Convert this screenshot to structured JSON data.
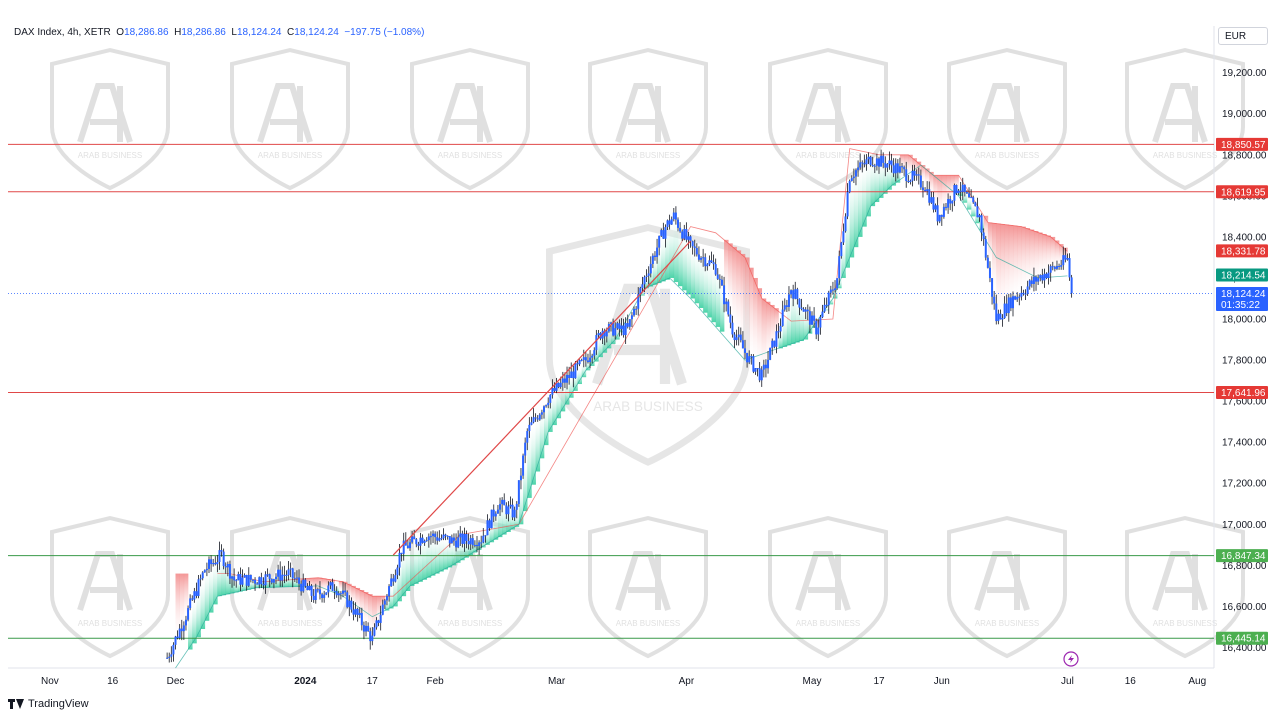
{
  "header": {
    "symbol": "DAX Index, 4h, XETR",
    "open_label": "O",
    "open": "18,286.86",
    "high_label": "H",
    "high": "18,286.86",
    "low_label": "L",
    "low": "18,124.24",
    "close_label": "C",
    "close": "18,124.24",
    "change": "−197.75 (−1.08%)"
  },
  "currency": "EUR",
  "footer": {
    "brand": "TradingView"
  },
  "watermark": {
    "text": "ARAB BUSINESS",
    "color": "#c8c8c8"
  },
  "colors": {
    "resistance": "#e04848",
    "support": "#3a9a4a",
    "up_fill": "#2ecc9a",
    "down_fill": "#f28b8b",
    "candle": "#2962ff",
    "trend": "#e04848",
    "current": "#2962ff",
    "baseline": "#26a69a",
    "cloud_line": "#ef5350"
  },
  "chart_data": {
    "type": "candlestick",
    "title": "DAX Index, 4h, XETR",
    "ylim": [
      16300,
      19330
    ],
    "y_ticks": [
      16400,
      16600,
      16800,
      17000,
      17200,
      17400,
      17600,
      17800,
      18000,
      18200,
      18400,
      18600,
      18800,
      19000,
      19200
    ],
    "y_tick_labels": [
      "16,400.00",
      "16,600.00",
      "16,800.00",
      "17,000.00",
      "17,200.00",
      "17,400.00",
      "17,600.00",
      "17,800.00",
      "18,000.00",
      "18,200.00",
      "18,400.00",
      "18,600.00",
      "18,800.00",
      "19,000.00",
      "19,200.00"
    ],
    "x_ticks": [
      {
        "label": "Nov",
        "date": "2023-11-01"
      },
      {
        "label": "16",
        "date": "2023-11-16"
      },
      {
        "label": "Dec",
        "date": "2023-12-01"
      },
      {
        "label": "2024",
        "date": "2024-01-01"
      },
      {
        "label": "17",
        "date": "2024-01-17"
      },
      {
        "label": "Feb",
        "date": "2024-02-01"
      },
      {
        "label": "Mar",
        "date": "2024-03-01"
      },
      {
        "label": "Apr",
        "date": "2024-04-01"
      },
      {
        "label": "May",
        "date": "2024-05-01"
      },
      {
        "label": "17",
        "date": "2024-05-17"
      },
      {
        "label": "Jun",
        "date": "2024-06-01"
      },
      {
        "label": "Jul",
        "date": "2024-07-01"
      },
      {
        "label": "16",
        "date": "2024-07-16"
      },
      {
        "label": "Aug",
        "date": "2024-08-01"
      }
    ],
    "horizontal_levels": [
      {
        "value": 18850.57,
        "label": "18,850.57",
        "kind": "resistance"
      },
      {
        "value": 18619.95,
        "label": "18,619.95",
        "kind": "resistance"
      },
      {
        "value": 17641.96,
        "label": "17,641.96",
        "kind": "resistance"
      },
      {
        "value": 16847.34,
        "label": "16,847.34",
        "kind": "support"
      },
      {
        "value": 16445.14,
        "label": "16,445.14",
        "kind": "support"
      }
    ],
    "markers": [
      {
        "value": 18331.78,
        "label": "18,331.78",
        "kind": "cloud"
      },
      {
        "value": 18214.54,
        "label": "18,214.54",
        "kind": "baseline"
      },
      {
        "value": 18124.24,
        "label": "18,124.24",
        "sublabel": "01:35:22",
        "kind": "current"
      }
    ],
    "trend_line": [
      {
        "date": "2024-01-22",
        "value": 16850
      },
      {
        "date": "2024-04-02",
        "value": 18380
      }
    ],
    "price_path": [
      [
        "2023-11-29",
        16350
      ],
      [
        "2023-12-04",
        16580
      ],
      [
        "2023-12-08",
        16780
      ],
      [
        "2023-12-12",
        16850
      ],
      [
        "2023-12-15",
        16730
      ],
      [
        "2023-12-20",
        16730
      ],
      [
        "2023-12-28",
        16760
      ],
      [
        "2024-01-03",
        16650
      ],
      [
        "2024-01-08",
        16700
      ],
      [
        "2024-01-12",
        16600
      ],
      [
        "2024-01-17",
        16440
      ],
      [
        "2024-01-19",
        16570
      ],
      [
        "2024-01-24",
        16880
      ],
      [
        "2024-01-30",
        16950
      ],
      [
        "2024-02-05",
        16920
      ],
      [
        "2024-02-12",
        16930
      ],
      [
        "2024-02-16",
        17100
      ],
      [
        "2024-02-20",
        17050
      ],
      [
        "2024-02-23",
        17450
      ],
      [
        "2024-02-28",
        17620
      ],
      [
        "2024-03-04",
        17720
      ],
      [
        "2024-03-08",
        17800
      ],
      [
        "2024-03-12",
        17950
      ],
      [
        "2024-03-18",
        17950
      ],
      [
        "2024-03-22",
        18200
      ],
      [
        "2024-03-27",
        18450
      ],
      [
        "2024-03-29",
        18500
      ],
      [
        "2024-04-02",
        18350
      ],
      [
        "2024-04-08",
        18250
      ],
      [
        "2024-04-12",
        17950
      ],
      [
        "2024-04-16",
        17800
      ],
      [
        "2024-04-19",
        17720
      ],
      [
        "2024-04-23",
        17950
      ],
      [
        "2024-04-26",
        18150
      ],
      [
        "2024-05-02",
        17950
      ],
      [
        "2024-05-07",
        18200
      ],
      [
        "2024-05-10",
        18700
      ],
      [
        "2024-05-15",
        18780
      ],
      [
        "2024-05-20",
        18750
      ],
      [
        "2024-05-24",
        18700
      ],
      [
        "2024-05-28",
        18650
      ],
      [
        "2024-05-31",
        18500
      ],
      [
        "2024-06-05",
        18650
      ],
      [
        "2024-06-10",
        18500
      ],
      [
        "2024-06-14",
        18000
      ],
      [
        "2024-06-18",
        18100
      ],
      [
        "2024-06-24",
        18200
      ],
      [
        "2024-06-28",
        18250
      ],
      [
        "2024-07-01",
        18290
      ],
      [
        "2024-07-02",
        18124
      ]
    ],
    "cloud_upper": [
      [
        "2023-12-11",
        16760
      ],
      [
        "2023-12-14",
        16760
      ],
      [
        "2023-12-22",
        16720
      ],
      [
        "2024-01-04",
        16740
      ],
      [
        "2024-01-10",
        16720
      ],
      [
        "2024-01-17",
        16650
      ],
      [
        "2024-01-22",
        16650
      ],
      [
        "2024-02-07",
        16950
      ],
      [
        "2024-02-21",
        17000
      ],
      [
        "2024-04-02",
        18450
      ],
      [
        "2024-04-08",
        18420
      ],
      [
        "2024-04-15",
        18300
      ],
      [
        "2024-04-19",
        18100
      ],
      [
        "2024-04-26",
        17990
      ],
      [
        "2024-05-06",
        18000
      ],
      [
        "2024-05-10",
        18830
      ],
      [
        "2024-05-17",
        18800
      ],
      [
        "2024-05-24",
        18800
      ],
      [
        "2024-05-30",
        18700
      ],
      [
        "2024-06-05",
        18700
      ],
      [
        "2024-06-12",
        18470
      ],
      [
        "2024-06-20",
        18450
      ],
      [
        "2024-06-27",
        18400
      ],
      [
        "2024-07-01",
        18330
      ]
    ],
    "cloud_lower": [
      [
        "2023-12-01",
        16300
      ],
      [
        "2023-12-06",
        16450
      ],
      [
        "2023-12-11",
        16650
      ],
      [
        "2023-12-20",
        16690
      ],
      [
        "2024-01-04",
        16700
      ],
      [
        "2024-01-10",
        16650
      ],
      [
        "2024-01-17",
        16550
      ],
      [
        "2024-01-22",
        16600
      ],
      [
        "2024-01-26",
        16700
      ],
      [
        "2024-02-05",
        16800
      ],
      [
        "2024-02-21",
        17000
      ],
      [
        "2024-02-28",
        17450
      ],
      [
        "2024-03-08",
        17750
      ],
      [
        "2024-03-15",
        17900
      ],
      [
        "2024-03-22",
        18150
      ],
      [
        "2024-03-28",
        18200
      ],
      [
        "2024-04-02",
        18100
      ],
      [
        "2024-04-15",
        17800
      ],
      [
        "2024-04-22",
        17850
      ],
      [
        "2024-04-29",
        17900
      ],
      [
        "2024-05-06",
        18100
      ],
      [
        "2024-05-10",
        18300
      ],
      [
        "2024-05-15",
        18550
      ],
      [
        "2024-05-20",
        18650
      ],
      [
        "2024-05-27",
        18750
      ],
      [
        "2024-06-05",
        18600
      ],
      [
        "2024-06-14",
        18300
      ],
      [
        "2024-06-24",
        18200
      ],
      [
        "2024-07-01",
        18210
      ]
    ]
  }
}
